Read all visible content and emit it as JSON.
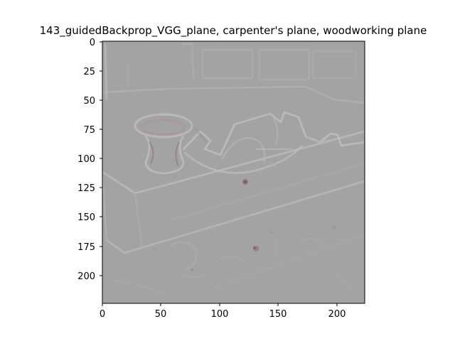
{
  "figure": {
    "title": "143_guidedBackprop_VGG_plane, carpenter's plane, woodworking plane"
  },
  "image_axes": {
    "xlim": [
      0,
      224
    ],
    "ylim": [
      224,
      0
    ],
    "xticks": [
      "0",
      "50",
      "100",
      "150",
      "200"
    ],
    "yticks": [
      "0",
      "25",
      "50",
      "75",
      "100",
      "125",
      "150",
      "175",
      "200"
    ]
  },
  "colors": {
    "background": "#a3a3a3",
    "edge_light": "#bdbcbc",
    "edge_dark": "#8f8c8e",
    "tint_pink": "#a9939e",
    "tint_red": "#9a6a78"
  }
}
